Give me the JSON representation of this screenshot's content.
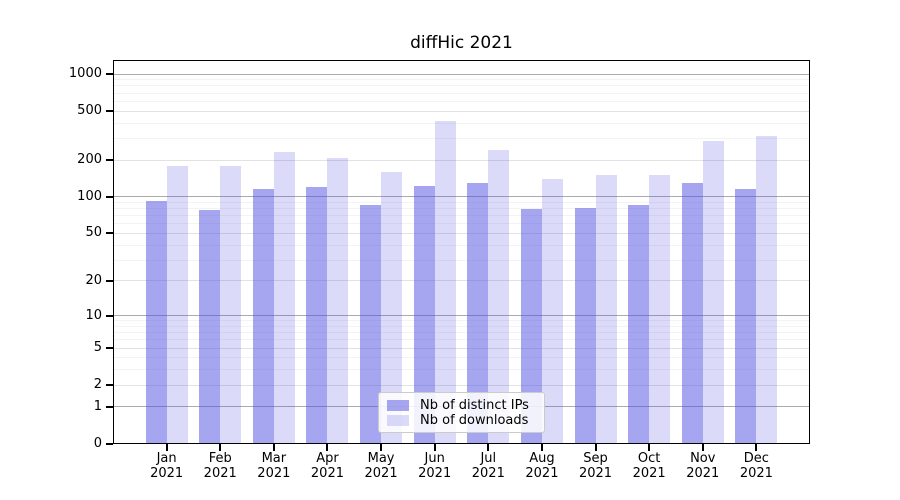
{
  "figure": {
    "background_color": "#ffffff",
    "axis_color": "#000000",
    "grid_major_color": "#ababab",
    "grid_minor_color": "#e2e2e2",
    "grid_micro_color": "#f3f3f3"
  },
  "chart_data": {
    "type": "bar",
    "title": "diffHic 2021",
    "xlabel": "",
    "ylabel": "",
    "year": "2021",
    "months": [
      "Jan",
      "Feb",
      "Mar",
      "Apr",
      "May",
      "Jun",
      "Jul",
      "Aug",
      "Sep",
      "Oct",
      "Nov",
      "Dec"
    ],
    "categories": [
      "Jan 2021",
      "Feb 2021",
      "Mar 2021",
      "Apr 2021",
      "May 2021",
      "Jun 2021",
      "Jul 2021",
      "Aug 2021",
      "Sep 2021",
      "Oct 2021",
      "Nov 2021",
      "Dec 2021"
    ],
    "series": [
      {
        "name": "Nb of distinct IPs",
        "color": "rgba(77,77,225,0.5)",
        "values": [
          92,
          78,
          115,
          120,
          85,
          122,
          131,
          80,
          81,
          86,
          129,
          117
        ]
      },
      {
        "name": "Nb of downloads",
        "color": "rgba(77,77,225,0.2)",
        "values": [
          180,
          180,
          233,
          206,
          160,
          415,
          243,
          140,
          150,
          152,
          288,
          315
        ]
      }
    ],
    "yscale": "log1p",
    "y_ticks": [
      0,
      1,
      2,
      5,
      10,
      20,
      50,
      100,
      200,
      500,
      1000
    ],
    "ylim": [
      0,
      1300
    ],
    "grid": true,
    "legend": {
      "position": "lower-center",
      "labels": [
        "Nb of distinct IPs",
        "Nb of downloads"
      ]
    }
  }
}
